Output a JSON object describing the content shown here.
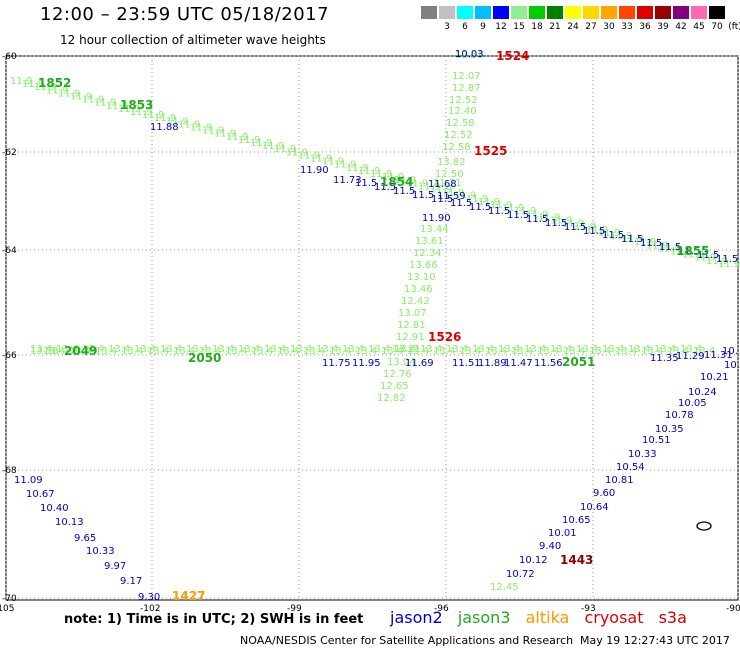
{
  "header": {
    "title": "12:00 – 23:59 UTC 05/18/2017",
    "subtitle": "12 hour collection of altimeter wave heights"
  },
  "colorbar": {
    "unit": "(ft)",
    "entries": [
      {
        "label": "",
        "color": "#808080"
      },
      {
        "label": "3",
        "color": "#c0c0c0"
      },
      {
        "label": "6",
        "color": "#00ffff"
      },
      {
        "label": "9",
        "color": "#00bfff"
      },
      {
        "label": "12",
        "color": "#0000ff"
      },
      {
        "label": "15",
        "color": "#90ee90"
      },
      {
        "label": "18",
        "color": "#00cc00"
      },
      {
        "label": "21",
        "color": "#008000"
      },
      {
        "label": "24",
        "color": "#ffff00"
      },
      {
        "label": "27",
        "color": "#ffd700"
      },
      {
        "label": "30",
        "color": "#ffa500"
      },
      {
        "label": "33",
        "color": "#ff4500"
      },
      {
        "label": "36",
        "color": "#dd0000"
      },
      {
        "label": "39",
        "color": "#990000"
      },
      {
        "label": "42",
        "color": "#800080"
      },
      {
        "label": "45",
        "color": "#ff69b4"
      },
      {
        "label": "70",
        "color": "#000000"
      }
    ]
  },
  "axes": {
    "lat_labels": [
      "-60",
      "-62",
      "-64",
      "-66",
      "-68",
      "-70"
    ],
    "lon_labels": [
      "-105",
      "-102",
      "-99",
      "-96",
      "-93",
      "-90"
    ]
  },
  "colors": {
    "jason2": "#0000cc",
    "jason3": "#22aa22",
    "jason3_light": "#88ee66",
    "altika": "#ff9900",
    "cryosat": "#dd0000",
    "s3a": "#cc0000",
    "dark_red": "#8b0000"
  },
  "tracks": {
    "jason3_vertical_labels": [
      "12.58",
      "12.07",
      "12.87",
      "12.52",
      "12.40",
      "12.58",
      "12.52",
      "12.58",
      "13.82",
      "12.50",
      "11.11",
      "13.44",
      "13.61",
      "12.34",
      "13.66",
      "13.10",
      "13.46",
      "12.42",
      "13.07",
      "12.81",
      "12.91",
      "13.21",
      "13.04",
      "12.76",
      "12.65",
      "12.82"
    ],
    "jason2_values": [
      "10.03",
      "11.68",
      "11.59",
      "11.90",
      "11.88",
      "11.90",
      "11.73",
      "11.51",
      "11.89",
      "11.47",
      "11.56",
      "11.35",
      "11.29",
      "11.31",
      "10.72",
      "10.21",
      "10.24",
      "10.05",
      "10.78",
      "10.35",
      "10.51",
      "10.33",
      "10.54",
      "10.81",
      "9.60",
      "10.64",
      "10.65",
      "10.01",
      "9.40",
      "10.12",
      "10.72",
      "11.09",
      "10.67",
      "10.40",
      "10.13",
      "9.65",
      "10.33",
      "9.97",
      "9.17",
      "9.30",
      "11.75",
      "11.95",
      "11.69"
    ],
    "jason3_values": [
      "12.45",
      "13.38"
    ],
    "time_labels": [
      {
        "text": "1524",
        "kind": "cryosat"
      },
      {
        "text": "1525",
        "kind": "cryosat"
      },
      {
        "text": "1526",
        "kind": "cryosat"
      },
      {
        "text": "1443",
        "kind": "dark_red"
      },
      {
        "text": "1427",
        "kind": "altika"
      },
      {
        "text": "1852",
        "kind": "jason3"
      },
      {
        "text": "1853",
        "kind": "jason3"
      },
      {
        "text": "1854",
        "kind": "jason3"
      },
      {
        "text": "1855",
        "kind": "jason3"
      },
      {
        "text": "2049",
        "kind": "jason3"
      },
      {
        "text": "2050",
        "kind": "jason3"
      },
      {
        "text": "2051",
        "kind": "jason3"
      }
    ]
  },
  "note": "note: 1) Time is in UTC; 2) SWH is in feet",
  "legend": {
    "jason2": "jason2",
    "jason3": "jason3",
    "altika": "altika",
    "cryosat": "cryosat",
    "s3a": "s3a"
  },
  "footer": {
    "center": "NOAA/NESDIS Center for Satellite Applications and Research",
    "timestamp": "May 19 12:27:43 UTC 2017"
  }
}
